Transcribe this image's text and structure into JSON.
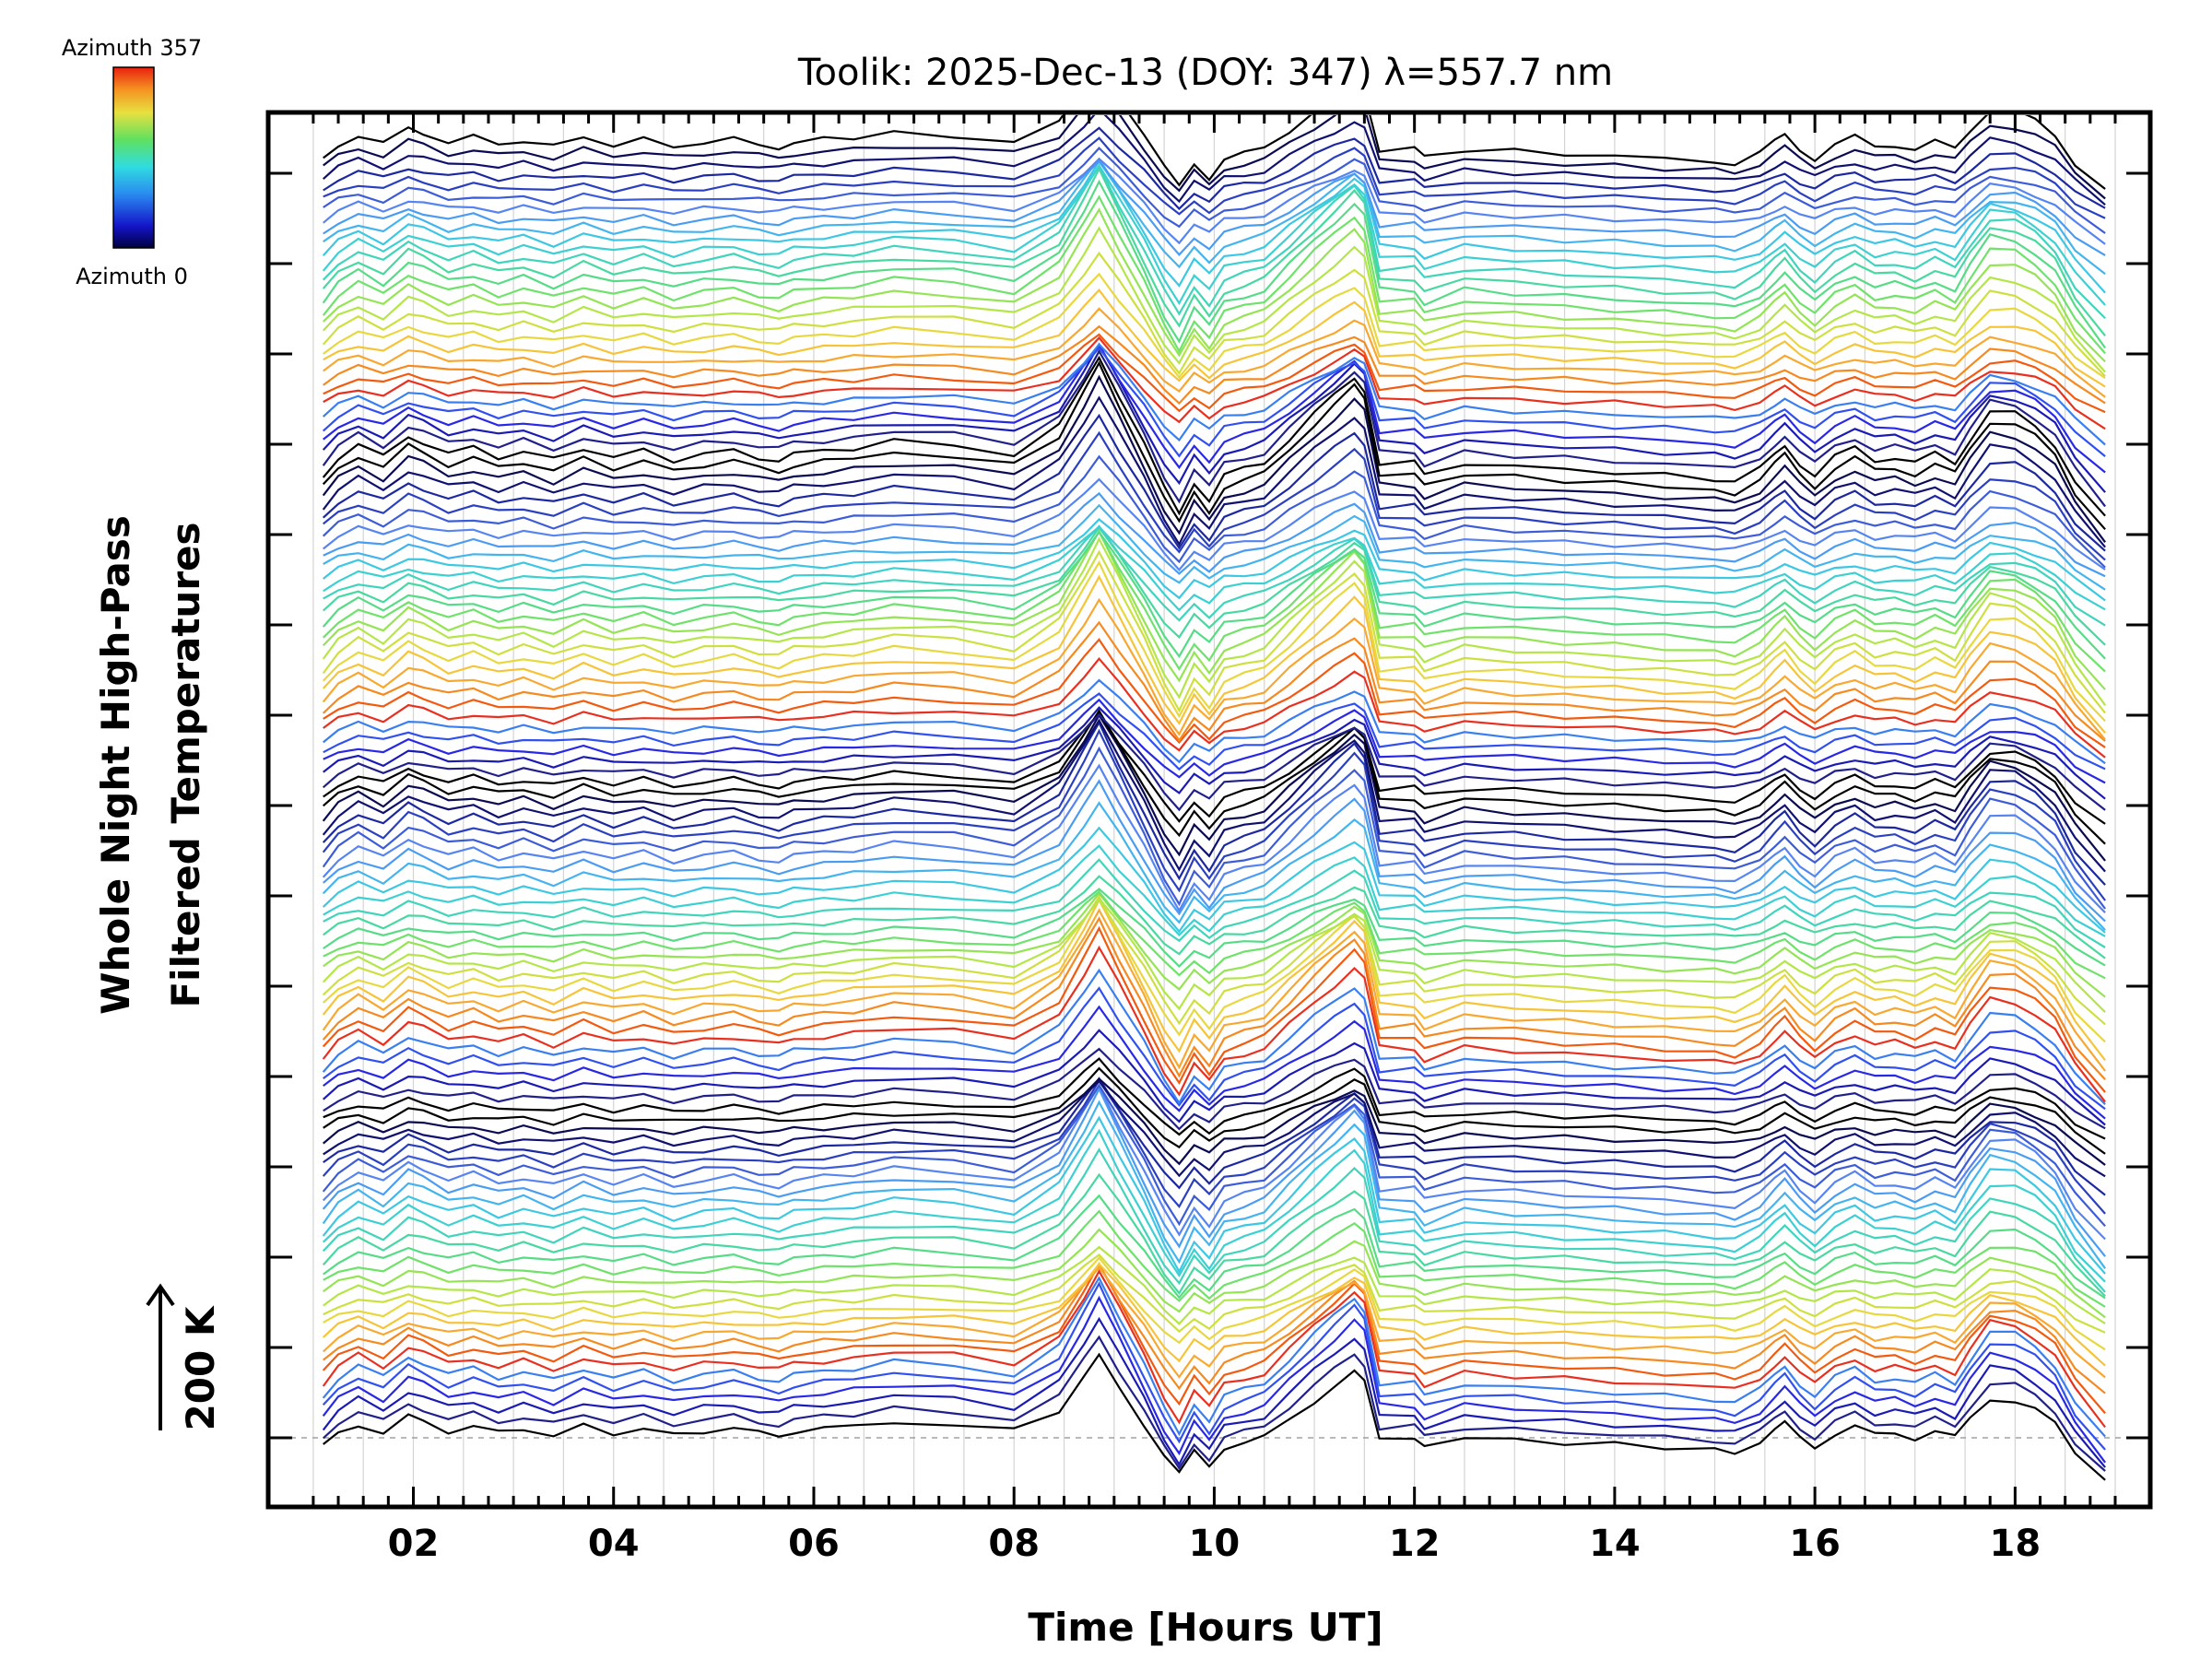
{
  "chart_data": {
    "type": "line",
    "title": "Toolik: 2025-Dec-13 (DOY: 347) λ=557.7 nm",
    "xlabel": "Time [Hours UT]",
    "ylabel_lines": [
      "Whole Night High-Pass",
      "Filtered Temperatures"
    ],
    "scale_label": "200 K",
    "xlim": [
      0.55,
      19.35
    ],
    "x_tick_labels": [
      "02",
      "04",
      "06",
      "08",
      "10",
      "12",
      "14",
      "16",
      "18"
    ],
    "x_tick_values": [
      2,
      4,
      6,
      8,
      10,
      12,
      14,
      16,
      18
    ],
    "colorbar": {
      "top_label": "Azimuth 357",
      "bottom_label": "Azimuth 0",
      "min": 0,
      "max": 357
    },
    "n_traces": 120,
    "trace_spacing_K": 50,
    "base_profile": {
      "x": [
        1.1,
        1.25,
        1.45,
        1.7,
        1.95,
        2.1,
        2.35,
        2.6,
        2.85,
        3.1,
        3.4,
        3.7,
        4.0,
        4.3,
        4.6,
        4.9,
        5.2,
        5.45,
        5.65,
        5.8,
        6.1,
        6.4,
        6.8,
        7.4,
        8.0,
        8.45,
        8.7,
        8.85,
        9.05,
        9.3,
        9.5,
        9.65,
        9.8,
        9.95,
        10.1,
        10.3,
        10.5,
        10.75,
        11.0,
        11.2,
        11.4,
        11.5,
        11.65,
        12.0,
        12.1,
        12.5,
        13.0,
        13.5,
        14.0,
        14.5,
        15.0,
        15.2,
        15.45,
        15.6,
        15.7,
        15.85,
        16.0,
        16.2,
        16.4,
        16.6,
        16.8,
        17.0,
        17.2,
        17.4,
        17.55,
        17.75,
        18.0,
        18.2,
        18.4,
        18.6,
        18.9
      ],
      "y": [
        -20,
        10,
        30,
        10,
        45,
        35,
        15,
        25,
        10,
        20,
        5,
        25,
        10,
        20,
        5,
        15,
        20,
        10,
        5,
        15,
        20,
        25,
        35,
        30,
        15,
        60,
        130,
        175,
        110,
        30,
        -40,
        -80,
        -30,
        -60,
        -20,
        -10,
        0,
        40,
        80,
        110,
        140,
        120,
        0,
        0,
        -20,
        0,
        -5,
        -10,
        -15,
        -20,
        -25,
        -30,
        -10,
        15,
        30,
        0,
        -20,
        10,
        25,
        5,
        10,
        0,
        15,
        0,
        40,
        85,
        80,
        60,
        30,
        -30,
        -90
      ]
    },
    "color_cycle": [
      "#000000",
      "#20208a",
      "#1a1ab4",
      "#2828e6",
      "#3050f0",
      "#3a7ff0",
      "#e83020",
      "#f25a10",
      "#f58a20",
      "#f8a830",
      "#f6c438",
      "#e8d840",
      "#cee040",
      "#b4e648",
      "#94e454",
      "#6ee26a",
      "#56dc86",
      "#48d8a2",
      "#40d4bc",
      "#3cd0d2",
      "#3cc8e2",
      "#44b4ee",
      "#4a9cf2",
      "#5684f0",
      "#3c5cd8",
      "#2a40c0",
      "#1c28a0",
      "#101070",
      "#0a0a50",
      "#000000"
    ]
  }
}
